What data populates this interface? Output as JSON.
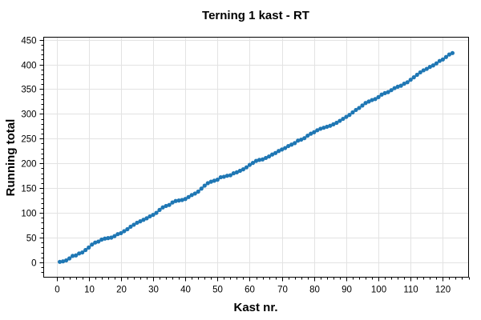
{
  "chart_data": {
    "type": "line",
    "title": "Terning 1 kast - RT",
    "xlabel": "Kast nr.",
    "ylabel": "Running total",
    "xlim": [
      -4,
      128
    ],
    "ylim": [
      -30,
      455
    ],
    "xticks": [
      0,
      10,
      20,
      30,
      40,
      50,
      60,
      70,
      80,
      90,
      100,
      110,
      120
    ],
    "yticks": [
      0,
      50,
      100,
      150,
      200,
      250,
      300,
      350,
      400,
      450
    ],
    "grid": true,
    "legend": "none",
    "color": "#1f77b4",
    "series": [
      {
        "x": [
          1,
          2,
          3,
          4,
          5,
          6,
          7,
          8,
          9,
          10,
          11,
          12,
          13,
          14,
          15,
          16,
          17,
          18,
          19,
          20,
          21,
          22,
          23,
          24,
          25,
          26,
          27,
          28,
          29,
          30,
          31,
          32,
          33,
          34,
          35,
          36,
          37,
          38,
          39,
          40,
          41,
          42,
          43,
          44,
          45,
          46,
          47,
          48,
          49,
          50,
          51,
          52,
          53,
          54,
          55,
          56,
          57,
          58,
          59,
          60,
          61,
          62,
          63,
          64,
          65,
          66,
          67,
          68,
          69,
          70,
          71,
          72,
          73,
          74,
          75,
          76,
          77,
          78,
          79,
          80,
          81,
          82,
          83,
          84,
          85,
          86,
          87,
          88,
          89,
          90,
          91,
          92,
          93,
          94,
          95,
          96,
          97,
          98,
          99,
          100,
          101,
          102,
          103,
          104,
          105,
          106,
          107,
          108,
          109,
          110,
          111,
          112,
          113,
          114,
          115,
          116,
          117,
          118,
          119,
          120,
          121,
          122,
          123
        ],
        "values": [
          1,
          2,
          4,
          8,
          13,
          14,
          18,
          20,
          25,
          30,
          36,
          40,
          42,
          46,
          48,
          49,
          50,
          53,
          57,
          59,
          63,
          67,
          72,
          76,
          80,
          83,
          86,
          89,
          93,
          96,
          100,
          106,
          111,
          114,
          116,
          121,
          124,
          125,
          126,
          128,
          132,
          136,
          139,
          143,
          149,
          155,
          160,
          163,
          165,
          167,
          172,
          173,
          175,
          176,
          180,
          182,
          185,
          188,
          192,
          197,
          201,
          205,
          207,
          208,
          211,
          214,
          218,
          221,
          225,
          228,
          231,
          235,
          238,
          241,
          246,
          248,
          251,
          256,
          260,
          263,
          267,
          270,
          272,
          274,
          276,
          279,
          282,
          286,
          290,
          294,
          298,
          303,
          308,
          312,
          317,
          322,
          325,
          328,
          330,
          334,
          339,
          342,
          344,
          348,
          352,
          355,
          357,
          361,
          364,
          369,
          374,
          379,
          384,
          388,
          391,
          395,
          398,
          402,
          407,
          410,
          415,
          420,
          423
        ]
      }
    ]
  }
}
